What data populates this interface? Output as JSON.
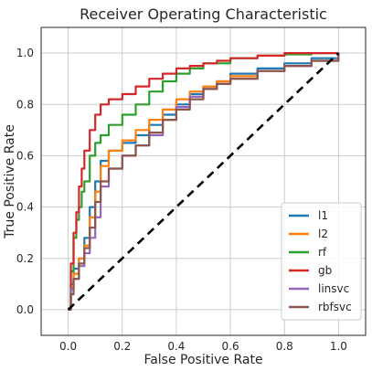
{
  "chart_data": {
    "type": "line",
    "title": "Receiver Operating Characteristic",
    "xlabel": "False Positive Rate",
    "ylabel": "True Positive Rate",
    "xlim": [
      -0.1,
      1.1
    ],
    "ylim": [
      -0.1,
      1.1
    ],
    "xticks": [
      "0.0",
      "0.2",
      "0.4",
      "0.6",
      "0.8",
      "1.0"
    ],
    "yticks": [
      "0.0",
      "0.2",
      "0.4",
      "0.6",
      "0.8",
      "1.0"
    ],
    "grid": true,
    "legend_position": "lower-right",
    "diagonal": {
      "x": [
        0,
        1
      ],
      "y": [
        0,
        1
      ],
      "color": "#000000",
      "style": "dashed"
    },
    "series": [
      {
        "name": "l1",
        "color": "#1f77b4",
        "x": [
          0,
          0.01,
          0.02,
          0.04,
          0.06,
          0.08,
          0.1,
          0.12,
          0.15,
          0.2,
          0.25,
          0.3,
          0.35,
          0.4,
          0.45,
          0.5,
          0.55,
          0.6,
          0.7,
          0.8,
          0.9,
          1.0
        ],
        "y": [
          0,
          0.1,
          0.16,
          0.2,
          0.28,
          0.4,
          0.5,
          0.58,
          0.62,
          0.65,
          0.68,
          0.72,
          0.76,
          0.8,
          0.84,
          0.87,
          0.89,
          0.92,
          0.94,
          0.96,
          0.98,
          1.0
        ]
      },
      {
        "name": "l2",
        "color": "#ff7f0e",
        "x": [
          0,
          0.01,
          0.02,
          0.04,
          0.06,
          0.08,
          0.1,
          0.12,
          0.15,
          0.2,
          0.25,
          0.3,
          0.35,
          0.4,
          0.45,
          0.5,
          0.55,
          0.6,
          0.7,
          0.8,
          0.9,
          1.0
        ],
        "y": [
          0,
          0.08,
          0.14,
          0.2,
          0.25,
          0.36,
          0.46,
          0.56,
          0.62,
          0.66,
          0.7,
          0.74,
          0.78,
          0.82,
          0.85,
          0.87,
          0.89,
          0.91,
          0.93,
          0.95,
          0.97,
          1.0
        ]
      },
      {
        "name": "rf",
        "color": "#2ca02c",
        "x": [
          0,
          0.01,
          0.02,
          0.03,
          0.04,
          0.05,
          0.06,
          0.08,
          0.1,
          0.12,
          0.15,
          0.2,
          0.25,
          0.3,
          0.35,
          0.4,
          0.45,
          0.5,
          0.6,
          0.7,
          0.8,
          0.9,
          1.0
        ],
        "y": [
          0,
          0.15,
          0.28,
          0.35,
          0.4,
          0.46,
          0.5,
          0.6,
          0.65,
          0.68,
          0.72,
          0.76,
          0.8,
          0.85,
          0.89,
          0.92,
          0.94,
          0.96,
          0.98,
          0.99,
          0.995,
          1.0,
          1.0
        ]
      },
      {
        "name": "gb",
        "color": "#d62728",
        "x": [
          0,
          0.01,
          0.02,
          0.03,
          0.04,
          0.05,
          0.06,
          0.08,
          0.1,
          0.12,
          0.15,
          0.2,
          0.25,
          0.3,
          0.35,
          0.4,
          0.45,
          0.5,
          0.55,
          0.6,
          0.7,
          0.8,
          0.9,
          1.0
        ],
        "y": [
          0,
          0.18,
          0.3,
          0.38,
          0.48,
          0.55,
          0.62,
          0.7,
          0.76,
          0.8,
          0.82,
          0.84,
          0.87,
          0.9,
          0.92,
          0.94,
          0.95,
          0.96,
          0.97,
          0.98,
          0.99,
          1.0,
          1.0,
          1.0
        ]
      },
      {
        "name": "linsvc",
        "color": "#9467bd",
        "x": [
          0,
          0.01,
          0.02,
          0.04,
          0.06,
          0.08,
          0.1,
          0.12,
          0.15,
          0.2,
          0.25,
          0.3,
          0.35,
          0.4,
          0.45,
          0.5,
          0.55,
          0.6,
          0.7,
          0.8,
          0.9,
          1.0
        ],
        "y": [
          0,
          0.08,
          0.12,
          0.17,
          0.22,
          0.28,
          0.36,
          0.48,
          0.55,
          0.6,
          0.64,
          0.68,
          0.74,
          0.79,
          0.83,
          0.86,
          0.88,
          0.9,
          0.93,
          0.95,
          0.97,
          1.0
        ]
      },
      {
        "name": "rbfsvc",
        "color": "#8c564b",
        "x": [
          0,
          0.01,
          0.02,
          0.04,
          0.06,
          0.08,
          0.1,
          0.12,
          0.15,
          0.2,
          0.25,
          0.3,
          0.35,
          0.4,
          0.45,
          0.5,
          0.55,
          0.6,
          0.7,
          0.8,
          0.9,
          1.0
        ],
        "y": [
          0,
          0.06,
          0.12,
          0.18,
          0.24,
          0.32,
          0.42,
          0.5,
          0.55,
          0.6,
          0.64,
          0.69,
          0.74,
          0.78,
          0.82,
          0.86,
          0.88,
          0.9,
          0.93,
          0.95,
          0.97,
          1.0
        ]
      }
    ]
  }
}
